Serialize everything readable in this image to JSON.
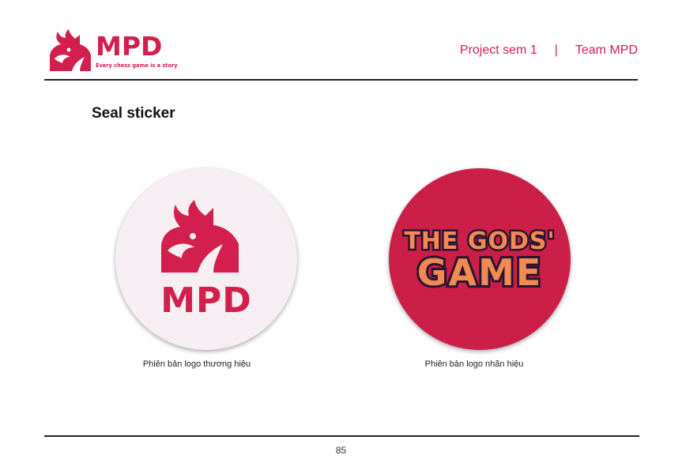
{
  "colors": {
    "brand_red": "#d21f4e",
    "seal_light_bg": "#f6eef2",
    "seal_dark_bg": "#cc1f47",
    "game_logo_fill": "#f28a52",
    "game_logo_outline": "#2a1432"
  },
  "header": {
    "brand_name": "MPD",
    "tagline": "Every chess game is a story",
    "logo_icon": "dragon-chess-knight-icon",
    "project": "Project sem 1",
    "separator": "|",
    "team": "Team MPD"
  },
  "section": {
    "title": "Seal sticker"
  },
  "seals": [
    {
      "logo_text": "MPD",
      "logo_icon": "dragon-chess-knight-icon",
      "caption": "Phiên bản logo thương hiệu"
    },
    {
      "logo_text_line1": "THE GODS'",
      "logo_text_line2": "GAME",
      "caption": "Phiên bản logo nhãn hiệu"
    }
  ],
  "footer": {
    "page_number": "85"
  }
}
